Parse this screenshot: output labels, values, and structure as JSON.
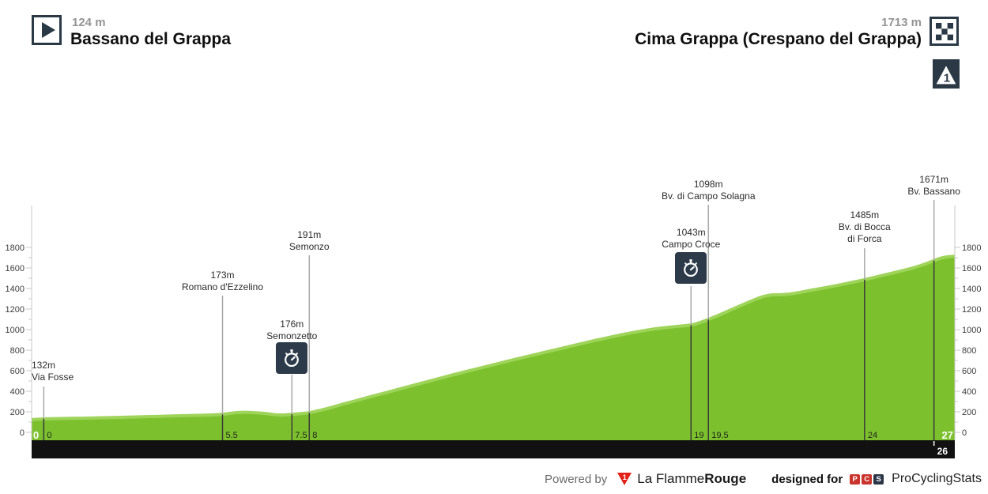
{
  "header": {
    "start": {
      "elevation": "124 m",
      "name": "Bassano del Grappa"
    },
    "finish": {
      "elevation": "1713 m",
      "name": "Cima Grappa (Crespano del Grappa)",
      "category_label": "1"
    }
  },
  "chart_data": {
    "type": "area",
    "title": "Route elevation profile Bassano del Grappa - Cima Grappa",
    "x_unit": "km",
    "y_unit": "m",
    "x_range": [
      0,
      26.6
    ],
    "y_axis": {
      "min": 0,
      "max": 1800,
      "tick_step": 200,
      "minor_step": 100,
      "tick_labels": [
        "0",
        "200",
        "400",
        "600",
        "800",
        "1000",
        "1200",
        "1400",
        "1600",
        "1800"
      ]
    },
    "start_km_label": "0",
    "end_km_label": "27",
    "profile": [
      [
        0,
        124
      ],
      [
        0.35,
        132
      ],
      [
        0.8,
        134
      ],
      [
        1.5,
        138
      ],
      [
        2.2,
        143
      ],
      [
        3,
        150
      ],
      [
        3.8,
        157
      ],
      [
        4.5,
        164
      ],
      [
        5,
        167
      ],
      [
        5.5,
        173
      ],
      [
        5.8,
        190
      ],
      [
        6.1,
        196
      ],
      [
        6.4,
        193
      ],
      [
        6.8,
        182
      ],
      [
        7.1,
        168
      ],
      [
        7.35,
        170
      ],
      [
        7.5,
        176
      ],
      [
        7.8,
        183
      ],
      [
        8,
        191
      ],
      [
        8.3,
        212
      ],
      [
        8.7,
        248
      ],
      [
        9,
        278
      ],
      [
        9.5,
        322
      ],
      [
        10,
        368
      ],
      [
        10.5,
        412
      ],
      [
        11,
        458
      ],
      [
        11.5,
        502
      ],
      [
        12,
        548
      ],
      [
        12.5,
        590
      ],
      [
        13,
        632
      ],
      [
        13.5,
        674
      ],
      [
        14,
        716
      ],
      [
        14.5,
        756
      ],
      [
        15,
        796
      ],
      [
        15.5,
        836
      ],
      [
        16,
        876
      ],
      [
        16.5,
        914
      ],
      [
        17,
        950
      ],
      [
        17.5,
        982
      ],
      [
        18,
        1010
      ],
      [
        18.5,
        1028
      ],
      [
        19,
        1043
      ],
      [
        19.2,
        1062
      ],
      [
        19.5,
        1098
      ],
      [
        19.8,
        1140
      ],
      [
        20.2,
        1200
      ],
      [
        20.6,
        1258
      ],
      [
        21,
        1316
      ],
      [
        21.3,
        1340
      ],
      [
        21.6,
        1338
      ],
      [
        21.9,
        1348
      ],
      [
        22.3,
        1372
      ],
      [
        22.7,
        1398
      ],
      [
        23.1,
        1422
      ],
      [
        23.5,
        1450
      ],
      [
        24,
        1485
      ],
      [
        24.4,
        1518
      ],
      [
        24.8,
        1550
      ],
      [
        25.2,
        1582
      ],
      [
        25.6,
        1620
      ],
      [
        26,
        1671
      ],
      [
        26.15,
        1692
      ],
      [
        26.3,
        1704
      ],
      [
        26.45,
        1711
      ],
      [
        26.6,
        1713
      ]
    ],
    "markers": [
      {
        "km": 0.35,
        "elevation": "132m",
        "name_lines": [
          "Via Fosse"
        ],
        "km_tick": "0",
        "timer": false,
        "layout": {
          "label_top": 455,
          "line_top": 489,
          "align": "left"
        }
      },
      {
        "km": 5.5,
        "elevation": "173m",
        "name_lines": [
          "Romano d'Ezzelino"
        ],
        "km_tick": "5.5",
        "timer": false,
        "layout": {
          "label_top": 341,
          "line_top": 374
        }
      },
      {
        "km": 7.5,
        "elevation": "176m",
        "name_lines": [
          "Semonzetto"
        ],
        "km_tick": "7.5",
        "timer": true,
        "layout": {
          "label_top": 403,
          "line_top": 474,
          "icon_top": 433
        }
      },
      {
        "km": 8,
        "elevation": "191m",
        "name_lines": [
          "Semonzo"
        ],
        "km_tick": "8",
        "timer": false,
        "layout": {
          "label_top": 290,
          "line_top": 323
        }
      },
      {
        "km": 19,
        "elevation": "1043m",
        "name_lines": [
          "Campo Croce"
        ],
        "km_tick": "19",
        "timer": true,
        "layout": {
          "label_top": 287,
          "line_top": 362,
          "icon_top": 319
        }
      },
      {
        "km": 19.5,
        "elevation": "1098m",
        "name_lines": [
          "Bv. di Campo Solagna"
        ],
        "km_tick": "19.5",
        "timer": false,
        "layout": {
          "label_top": 226,
          "line_top": 259
        }
      },
      {
        "km": 24,
        "elevation": "1485m",
        "name_lines": [
          "Bv. di Bocca",
          "di Forca"
        ],
        "km_tick": "24",
        "timer": false,
        "layout": {
          "label_top": 265,
          "line_top": 314
        }
      },
      {
        "km": 26,
        "elevation": "1671m",
        "name_lines": [
          "Bv. Bassano"
        ],
        "km_tick": "26",
        "km_tick_in_bar": true,
        "timer": false,
        "layout": {
          "label_top": 220,
          "line_top": 253
        }
      }
    ],
    "colors": {
      "green_fill": "#7cc12d",
      "green_edge": "#9fd45a",
      "bar_black": "#111111",
      "marker_line_gray": "#a8a8a8",
      "marker_line_dark": "#3a3a3a",
      "axis_line": "#c9c9c9",
      "axis_text": "#3d3d3d",
      "km_text_dark": "#1f1f1f",
      "km_text_white": "#ffffff",
      "navy": "#2b3947"
    }
  },
  "footer": {
    "powered_by": "Powered by",
    "lfr_badge": "1",
    "lfr_name_regular": "La Flamme",
    "lfr_name_bold": "Rouge",
    "designed_for": "designed for",
    "pcs_letters": [
      "P",
      "C",
      "S"
    ],
    "pcs_name": "ProCyclingStats"
  }
}
